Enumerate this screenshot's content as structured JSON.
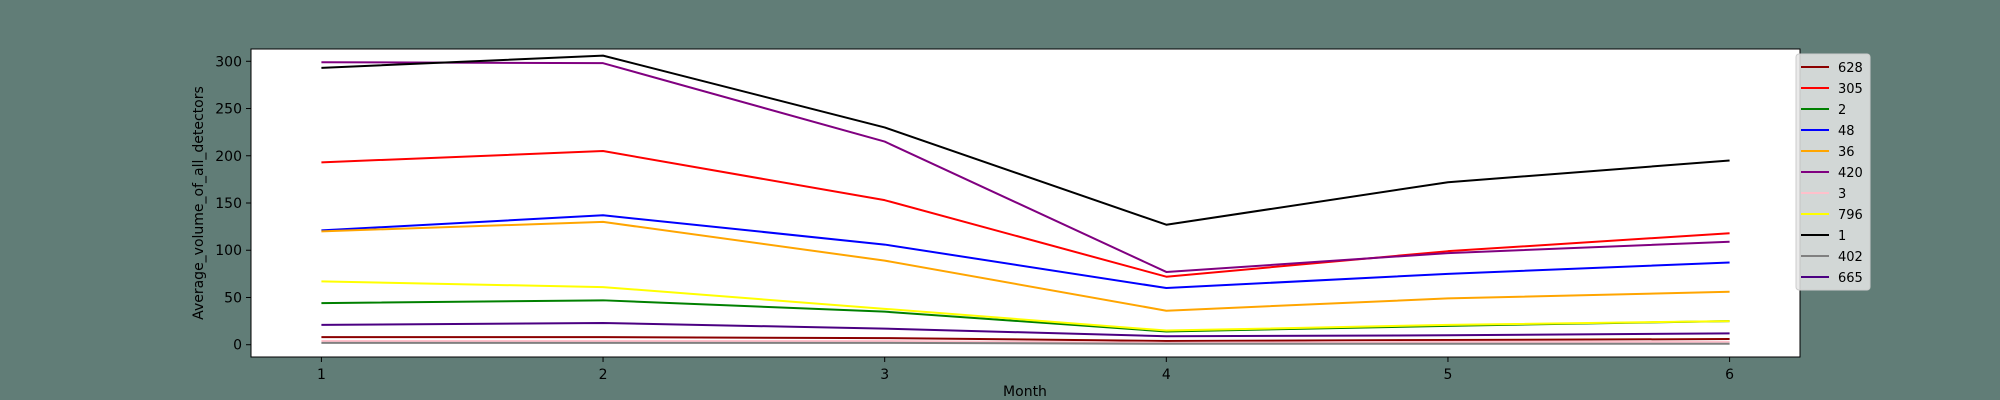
{
  "colors": {
    "background": "#617d77",
    "plot_area": "#ffffff",
    "legend_bg": "#e6e6e6"
  },
  "chart_data": {
    "type": "line",
    "title": "",
    "xlabel": "Month",
    "ylabel": "Average_volume_of_all_detectors",
    "x": [
      1,
      2,
      3,
      4,
      5,
      6
    ],
    "xlim": [
      0.75,
      6.25
    ],
    "ylim": [
      -13,
      313
    ],
    "yticks": [
      0,
      50,
      100,
      150,
      200,
      250,
      300
    ],
    "grid": false,
    "legend_placement": "upper-right-outside",
    "series": [
      {
        "name": "628",
        "color": "#8b0000",
        "values": [
          8,
          8,
          7,
          4,
          5,
          6
        ]
      },
      {
        "name": "305",
        "color": "#ff0000",
        "values": [
          193,
          205,
          153,
          72,
          99,
          118
        ]
      },
      {
        "name": "2",
        "color": "#008000",
        "values": [
          44,
          47,
          35,
          14,
          20,
          25
        ]
      },
      {
        "name": "48",
        "color": "#0000ff",
        "values": [
          121,
          137,
          106,
          60,
          75,
          87
        ]
      },
      {
        "name": "36",
        "color": "#ffa500",
        "values": [
          120,
          130,
          89,
          36,
          49,
          56
        ]
      },
      {
        "name": "420",
        "color": "#800080",
        "values": [
          299,
          298,
          215,
          77,
          97,
          109
        ]
      },
      {
        "name": "3",
        "color": "#ffc0cb",
        "values": [
          4,
          4,
          4,
          2,
          3,
          3
        ]
      },
      {
        "name": "796",
        "color": "#ffff00",
        "values": [
          67,
          61,
          38,
          15,
          21,
          25
        ]
      },
      {
        "name": "1",
        "color": "#000000",
        "values": [
          293,
          306,
          230,
          127,
          172,
          195
        ]
      },
      {
        "name": "402",
        "color": "#808080",
        "values": [
          2,
          2,
          2,
          1,
          1,
          1
        ]
      },
      {
        "name": "665",
        "color": "#4b0082",
        "values": [
          21,
          23,
          17,
          9,
          10,
          12
        ]
      }
    ]
  }
}
